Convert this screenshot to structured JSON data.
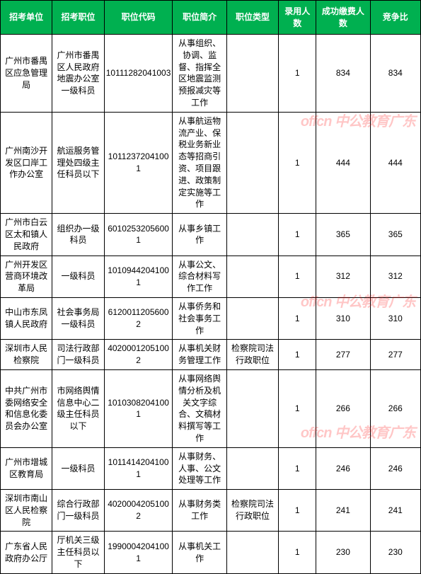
{
  "watermark": {
    "main": "offcn 中公教育广东",
    "color": "#ff0000",
    "opacity": 0.22
  },
  "header_color": "#00b050",
  "columns": [
    "招考单位",
    "招考职位",
    "职位代码",
    "职位简介",
    "职位类型",
    "录用人数",
    "成功缴费人数",
    "竞争比"
  ],
  "rows": [
    {
      "unit": "广州市番禺区应急管理局",
      "post": "广州市番禺区人民政府地震办公室一级科员",
      "code": "10111282041003",
      "desc": "从事组织、协调、监督、指挥全区地震监测预报减灾等工作",
      "type": "",
      "hire": "1",
      "paid": "834",
      "ratio": "834"
    },
    {
      "unit": "广州南沙开发区口岸工作办公室",
      "post": "航运服务管理处四级主任科员以下",
      "code": "10112372041001",
      "desc": "从事航运物流产业、保税业务新业态等招商引资、项目跟进、政策制定实施等工作",
      "type": "",
      "hire": "1",
      "paid": "444",
      "ratio": "444"
    },
    {
      "unit": "广州市白云区太和镇人民政府",
      "post": "组织办一级科员",
      "code": "60102532056001",
      "desc": "从事乡镇工作",
      "type": "",
      "hire": "1",
      "paid": "365",
      "ratio": "365"
    },
    {
      "unit": "广州开发区营商环境改革局",
      "post": "一级科员",
      "code": "10109442041001",
      "desc": "从事公文、综合材料写作工作",
      "type": "",
      "hire": "1",
      "paid": "312",
      "ratio": "312"
    },
    {
      "unit": "中山市东凤镇人民政府",
      "post": "社会事务局一级科员",
      "code": "61200112056002",
      "desc": "从事侨务和社会事务工作",
      "type": "",
      "hire": "1",
      "paid": "310",
      "ratio": "310"
    },
    {
      "unit": "深圳市人民检察院",
      "post": "司法行政部门一级科员",
      "code": "40200012051002",
      "desc": "从事机关财务管理工作",
      "type": "检察院司法行政职位",
      "hire": "1",
      "paid": "277",
      "ratio": "277"
    },
    {
      "unit": "中共广州市委网络安全和信息化委员会办公室",
      "post": "市网络舆情信息中心二级主任科员以下",
      "code": "10103082041001",
      "desc": "从事网络舆情分析及机关文字综合、文稿材料撰写等工作",
      "type": "",
      "hire": "1",
      "paid": "266",
      "ratio": "266"
    },
    {
      "unit": "广州市增城区教育局",
      "post": "一级科员",
      "code": "10114142041001",
      "desc": "从事财务、人事、公文处理等工作",
      "type": "",
      "hire": "1",
      "paid": "246",
      "ratio": "246"
    },
    {
      "unit": "深圳市南山区人民检察院",
      "post": "综合行政部门一级科员",
      "code": "40200042051002",
      "desc": "从事财务类工作",
      "type": "检察院司法行政职位",
      "hire": "1",
      "paid": "241",
      "ratio": "241"
    },
    {
      "unit": "广东省人民政府办公厅",
      "post": "厅机关三级主任科员以下",
      "code": "19900042041001",
      "desc": "从事机关工作",
      "type": "",
      "hire": "1",
      "paid": "230",
      "ratio": "230"
    }
  ]
}
